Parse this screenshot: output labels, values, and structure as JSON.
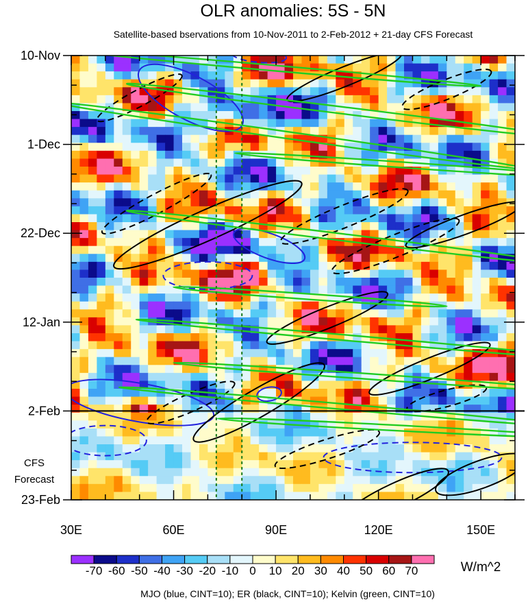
{
  "chart_data": {
    "type": "heatmap",
    "title": "OLR anomalies: 5S - 5N",
    "subtitle": "Satellite-based bservations from 10-Nov-2011 to 2-Feb-2012 + 21-day CFS Forecast",
    "x_axis": {
      "range": [
        30,
        160
      ],
      "ticks": [
        30,
        60,
        90,
        120,
        150
      ],
      "tick_labels": [
        "30E",
        "60E",
        "90E",
        "120E",
        "150E"
      ]
    },
    "y_axis": {
      "tick_labels": [
        "10-Nov",
        "1-Dec",
        "22-Dec",
        "12-Jan",
        "2-Feb",
        "23-Feb"
      ],
      "tick_day_offsets": [
        0,
        21,
        42,
        63,
        84,
        105
      ],
      "range_days": [
        0,
        105
      ]
    },
    "observation_end_label": "2-Feb",
    "forecast_label": [
      "CFS",
      "Forecast"
    ],
    "reference_longitudes": [
      72.5,
      80
    ],
    "colorbar": {
      "levels": [
        -70,
        -60,
        -50,
        -40,
        -30,
        -20,
        -10,
        0,
        10,
        20,
        30,
        40,
        50,
        60,
        70
      ],
      "labels": [
        "-70",
        "-60",
        "-50",
        "-40",
        "-30",
        "-20",
        "-10",
        "0",
        "10",
        "20",
        "30",
        "40",
        "50",
        "60",
        "70"
      ],
      "colors": [
        "#9b30ff",
        "#0b0b8a",
        "#1d2fc9",
        "#3f6fe6",
        "#3fa3f5",
        "#55cbf5",
        "#a8dff7",
        "#e3f6fc",
        "#fffccb",
        "#ffe46a",
        "#ffbb1f",
        "#ff8a00",
        "#ff3300",
        "#d90000",
        "#a61515",
        "#ff6fb0"
      ],
      "units": "W/m^2"
    },
    "contour_legend": "MJO (blue, CINT=10); ER (black, CINT=10); Kelvin (green, CINT=10)",
    "contour_colors": {
      "mjo": "#2222dd",
      "er": "#000000",
      "kelvin": "#22cc22"
    }
  }
}
